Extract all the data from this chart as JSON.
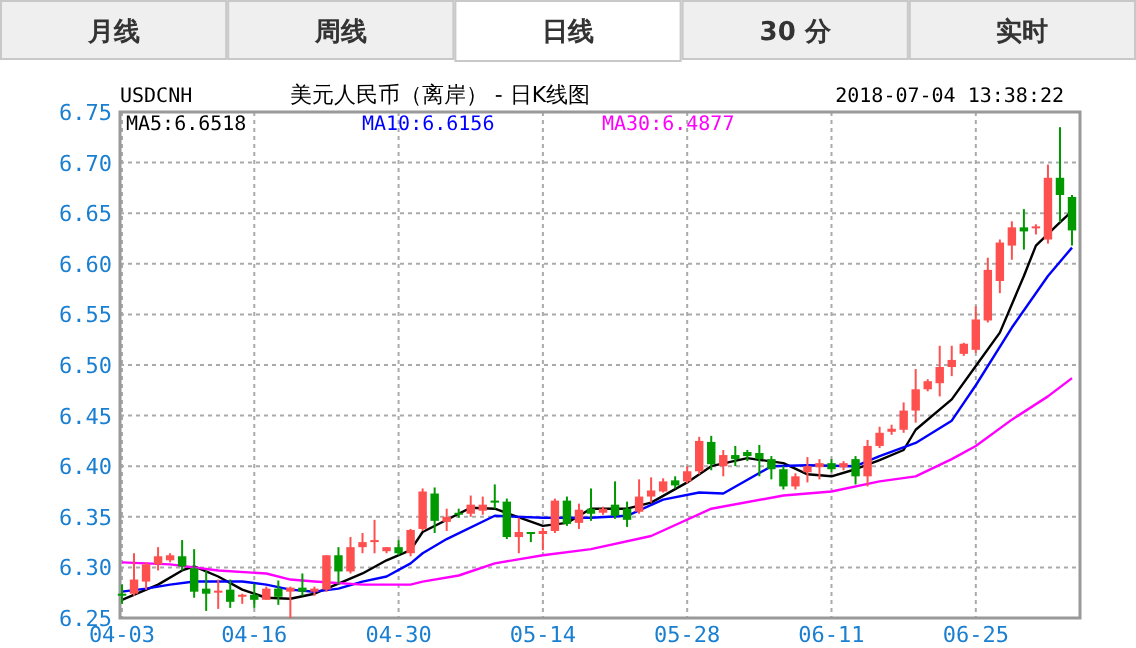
{
  "chart_data": {
    "type": "candlestick",
    "title": "美元人民币（离岸） - 日K线图",
    "subtitle": "USDCNH",
    "annotations": [
      "月线",
      "周线",
      "日线",
      "30 分",
      "实时",
      "2018-07-04 13:38:22"
    ],
    "categories": [
      "04-03",
      null,
      null,
      null,
      null,
      null,
      null,
      null,
      null,
      null,
      null,
      "04-16",
      null,
      null,
      null,
      null,
      null,
      null,
      null,
      null,
      null,
      null,
      null,
      "04-30",
      null,
      null,
      null,
      null,
      null,
      null,
      null,
      null,
      null,
      null,
      null,
      "05-14",
      null,
      null,
      null,
      null,
      null,
      null,
      null,
      null,
      null,
      null,
      null,
      "05-28",
      null,
      null,
      null,
      null,
      null,
      null,
      null,
      null,
      null,
      null,
      null,
      "06-11",
      null,
      null,
      null,
      null,
      null,
      null,
      null,
      null,
      null,
      null,
      null,
      "06-25",
      null,
      null,
      null,
      null,
      null,
      null,
      null,
      null
    ],
    "ohlc": [
      [
        6.274,
        6.283,
        6.264,
        6.272
      ],
      [
        6.274,
        6.314,
        6.272,
        6.288
      ],
      [
        6.286,
        6.305,
        6.278,
        6.303
      ],
      [
        6.303,
        6.32,
        6.297,
        6.311
      ],
      [
        6.307,
        6.314,
        6.305,
        6.312
      ],
      [
        6.311,
        6.327,
        6.297,
        6.301
      ],
      [
        6.299,
        6.318,
        6.27,
        6.276
      ],
      [
        6.279,
        6.297,
        6.257,
        6.274
      ],
      [
        6.276,
        6.288,
        6.259,
        6.277
      ],
      [
        6.278,
        6.288,
        6.26,
        6.266
      ],
      [
        6.271,
        6.274,
        6.264,
        6.273
      ],
      [
        6.273,
        6.284,
        6.26,
        6.268
      ],
      [
        6.268,
        6.281,
        6.268,
        6.279
      ],
      [
        6.279,
        6.287,
        6.263,
        6.271
      ],
      [
        6.276,
        6.281,
        6.25,
        6.28
      ],
      [
        6.28,
        6.294,
        6.272,
        6.276
      ],
      [
        6.276,
        6.281,
        6.272,
        6.279
      ],
      [
        6.278,
        6.312,
        6.276,
        6.312
      ],
      [
        6.312,
        6.32,
        6.283,
        6.296
      ],
      [
        6.296,
        6.33,
        6.294,
        6.32
      ],
      [
        6.32,
        6.334,
        6.314,
        6.325
      ],
      [
        6.325,
        6.347,
        6.314,
        6.327
      ],
      [
        6.316,
        6.32,
        6.314,
        6.32
      ],
      [
        6.32,
        6.327,
        6.312,
        6.314
      ],
      [
        6.314,
        6.338,
        6.311,
        6.337
      ],
      [
        6.338,
        6.378,
        6.336,
        6.375
      ],
      [
        6.373,
        6.379,
        6.334,
        6.346
      ],
      [
        6.345,
        6.358,
        6.336,
        6.35
      ],
      [
        6.354,
        6.358,
        6.349,
        6.353
      ],
      [
        6.353,
        6.371,
        6.35,
        6.362
      ],
      [
        6.356,
        6.37,
        6.352,
        6.362
      ],
      [
        6.366,
        6.382,
        6.358,
        6.364
      ],
      [
        6.365,
        6.368,
        6.328,
        6.33
      ],
      [
        6.33,
        6.349,
        6.314,
        6.335
      ],
      [
        6.335,
        6.335,
        6.325,
        6.334
      ],
      [
        6.333,
        6.339,
        6.317,
        6.336
      ],
      [
        6.336,
        6.368,
        6.334,
        6.366
      ],
      [
        6.366,
        6.37,
        6.341,
        6.343
      ],
      [
        6.344,
        6.363,
        6.338,
        6.357
      ],
      [
        6.358,
        6.378,
        6.346,
        6.353
      ],
      [
        6.354,
        6.36,
        6.352,
        6.358
      ],
      [
        6.362,
        6.385,
        6.348,
        6.351
      ],
      [
        6.358,
        6.365,
        6.34,
        6.347
      ],
      [
        6.355,
        6.387,
        6.353,
        6.37
      ],
      [
        6.37,
        6.389,
        6.364,
        6.376
      ],
      [
        6.375,
        6.388,
        6.374,
        6.385
      ],
      [
        6.386,
        6.39,
        6.378,
        6.381
      ],
      [
        6.385,
        6.4,
        6.383,
        6.395
      ],
      [
        6.395,
        6.429,
        6.392,
        6.425
      ],
      [
        6.424,
        6.43,
        6.396,
        6.402
      ],
      [
        6.4,
        6.416,
        6.39,
        6.411
      ],
      [
        6.411,
        6.42,
        6.4,
        6.407
      ],
      [
        6.414,
        6.416,
        6.405,
        6.41
      ],
      [
        6.413,
        6.421,
        6.39,
        6.407
      ],
      [
        6.407,
        6.41,
        6.387,
        6.397
      ],
      [
        6.397,
        6.4,
        6.377,
        6.38
      ],
      [
        6.38,
        6.393,
        6.377,
        6.39
      ],
      [
        6.394,
        6.409,
        6.384,
        6.4
      ],
      [
        6.399,
        6.407,
        6.387,
        6.403
      ],
      [
        6.403,
        6.407,
        6.394,
        6.397
      ],
      [
        6.399,
        6.405,
        6.396,
        6.403
      ],
      [
        6.407,
        6.41,
        6.382,
        6.39
      ],
      [
        6.39,
        6.426,
        6.38,
        6.42
      ],
      [
        6.42,
        6.439,
        6.418,
        6.433
      ],
      [
        6.434,
        6.441,
        6.431,
        6.437
      ],
      [
        6.436,
        6.463,
        6.433,
        6.455
      ],
      [
        6.455,
        6.496,
        6.443,
        6.476
      ],
      [
        6.476,
        6.486,
        6.474,
        6.484
      ],
      [
        6.482,
        6.519,
        6.469,
        6.498
      ],
      [
        6.498,
        6.519,
        6.489,
        6.505
      ],
      [
        6.511,
        6.522,
        6.509,
        6.521
      ],
      [
        6.515,
        6.558,
        6.512,
        6.545
      ],
      [
        6.544,
        6.606,
        6.542,
        6.594
      ],
      [
        6.583,
        6.624,
        6.571,
        6.621
      ],
      [
        6.618,
        6.642,
        6.604,
        6.636
      ],
      [
        6.636,
        6.654,
        6.614,
        6.632
      ],
      [
        6.636,
        6.639,
        6.629,
        6.637
      ],
      [
        6.624,
        6.698,
        6.62,
        6.685
      ],
      [
        6.685,
        6.735,
        6.641,
        6.668
      ],
      [
        6.666,
        6.668,
        6.618,
        6.633
      ]
    ],
    "colors": [
      "#009900",
      "#ff5050",
      "#ff5050",
      "#ff5050",
      "#ff5050",
      "#009900",
      "#009900",
      "#009900",
      "#ff5050",
      "#009900",
      "#ff5050",
      "#009900",
      "#ff5050",
      "#009900",
      "#ff5050",
      "#009900",
      "#ff5050",
      "#ff5050",
      "#009900",
      "#ff5050",
      "#ff5050",
      "#ff5050",
      "#ff5050",
      "#009900",
      "#ff5050",
      "#ff5050",
      "#009900",
      "#ff5050",
      "#009900",
      "#ff5050",
      "#ff5050",
      "#009900",
      "#009900",
      "#ff5050",
      "#009900",
      "#ff5050",
      "#ff5050",
      "#009900",
      "#ff5050",
      "#009900",
      "#ff5050",
      "#009900",
      "#009900",
      "#ff5050",
      "#ff5050",
      "#ff5050",
      "#009900",
      "#ff5050",
      "#ff5050",
      "#009900",
      "#ff5050",
      "#009900",
      "#009900",
      "#009900",
      "#009900",
      "#009900",
      "#ff5050",
      "#ff5050",
      "#ff5050",
      "#009900",
      "#ff5050",
      "#009900",
      "#ff5050",
      "#ff5050",
      "#ff5050",
      "#ff5050",
      "#ff5050",
      "#ff5050",
      "#ff5050",
      "#ff5050",
      "#ff5050",
      "#ff5050",
      "#ff5050",
      "#ff5050",
      "#ff5050",
      "#009900",
      "#ff5050",
      "#ff5050",
      "#009900",
      "#009900"
    ],
    "series": [
      {
        "name": "MA5:6.6518",
        "type": "line",
        "color": "#000000",
        "values": [
          6.268,
          null,
          null,
          6.283,
          null,
          6.297,
          6.301,
          null,
          6.291,
          null,
          6.278,
          null,
          6.27,
          null,
          6.269,
          null,
          6.274,
          null,
          6.284,
          null,
          6.294,
          null,
          6.307,
          null,
          6.317,
          6.335,
          null,
          null,
          null,
          6.359,
          null,
          6.358,
          null,
          null,
          null,
          6.341,
          null,
          6.344,
          null,
          6.358,
          null,
          null,
          6.358,
          null,
          6.364,
          null,
          null,
          6.384,
          null,
          6.4,
          null,
          null,
          6.408,
          null,
          null,
          6.403,
          null,
          6.392,
          null,
          6.39,
          null,
          6.397,
          null,
          6.406,
          null,
          6.416,
          6.436,
          null,
          null,
          6.466,
          null,
          6.499,
          null,
          6.532,
          null,
          6.588,
          6.618,
          null,
          6.641,
          6.652
        ]
      },
      {
        "name": "MA10:6.6156",
        "type": "line",
        "color": "#0000ff",
        "values": [
          6.276,
          null,
          6.279,
          null,
          6.283,
          null,
          6.286,
          null,
          null,
          null,
          6.286,
          null,
          6.283,
          null,
          6.278,
          null,
          6.276,
          null,
          6.279,
          null,
          6.286,
          null,
          6.291,
          null,
          6.304,
          6.314,
          null,
          6.328,
          null,
          null,
          null,
          6.351,
          null,
          null,
          null,
          6.349,
          null,
          null,
          null,
          6.349,
          null,
          null,
          6.351,
          null,
          null,
          6.367,
          null,
          null,
          6.374,
          null,
          6.373,
          null,
          null,
          null,
          6.4,
          null,
          null,
          6.401,
          null,
          null,
          null,
          6.4,
          null,
          6.41,
          null,
          null,
          6.423,
          null,
          null,
          6.445,
          null,
          6.48,
          null,
          null,
          6.537,
          null,
          null,
          6.588,
          null,
          6.616
        ]
      },
      {
        "name": "MA30:6.4877",
        "type": "line",
        "color": "#ff00ff",
        "values": [
          6.305,
          null,
          null,
          null,
          6.303,
          null,
          null,
          null,
          6.297,
          null,
          null,
          null,
          6.294,
          null,
          6.288,
          null,
          6.286,
          null,
          null,
          null,
          6.283,
          null,
          null,
          null,
          6.283,
          6.286,
          null,
          null,
          6.292,
          null,
          null,
          6.304,
          null,
          null,
          null,
          6.312,
          null,
          null,
          null,
          6.318,
          null,
          null,
          null,
          null,
          6.331,
          null,
          null,
          null,
          null,
          6.358,
          null,
          null,
          null,
          null,
          null,
          6.371,
          null,
          null,
          null,
          6.375,
          null,
          null,
          null,
          6.385,
          null,
          null,
          6.39,
          null,
          null,
          6.407,
          null,
          6.42,
          null,
          null,
          6.446,
          null,
          null,
          6.469,
          null,
          6.487
        ]
      }
    ],
    "ylim": [
      6.25,
      6.75
    ],
    "yticks": [
      {
        "value": 6.25,
        "label": "6.25"
      },
      {
        "value": 6.3,
        "label": "6.30"
      },
      {
        "value": 6.35,
        "label": "6.35"
      },
      {
        "value": 6.4,
        "label": "6.40"
      },
      {
        "value": 6.45,
        "label": "6.45"
      },
      {
        "value": 6.5,
        "label": "6.50"
      },
      {
        "value": 6.55,
        "label": "6.55"
      },
      {
        "value": 6.6,
        "label": "6.60"
      },
      {
        "value": 6.65,
        "label": "6.65"
      },
      {
        "value": 6.7,
        "label": "6.70"
      },
      {
        "value": 6.75,
        "label": "6.75"
      }
    ],
    "grid": true,
    "legend": "top left",
    "marker": "none",
    "line_style": "solid"
  }
}
